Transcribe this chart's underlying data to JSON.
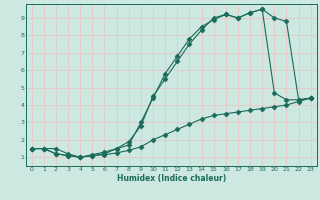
{
  "xlabel": "Humidex (Indice chaleur)",
  "background_color": "#cce8e0",
  "grid_color_major": "#e8c8c8",
  "line_color": "#1a6b5a",
  "xlim": [
    -0.5,
    23.5
  ],
  "ylim": [
    0.5,
    9.8
  ],
  "xticks": [
    0,
    1,
    2,
    3,
    4,
    5,
    6,
    7,
    8,
    9,
    10,
    11,
    12,
    13,
    14,
    15,
    16,
    17,
    18,
    19,
    20,
    21,
    22,
    23
  ],
  "yticks": [
    1,
    2,
    3,
    4,
    5,
    6,
    7,
    8,
    9
  ],
  "line1_x": [
    0,
    1,
    2,
    3,
    4,
    5,
    6,
    7,
    8,
    9,
    10,
    11,
    12,
    13,
    14,
    15,
    16,
    17,
    18,
    19,
    20,
    21,
    22,
    23
  ],
  "line1_y": [
    1.5,
    1.5,
    1.5,
    1.2,
    1.0,
    1.1,
    1.15,
    1.25,
    1.4,
    1.6,
    2.0,
    2.3,
    2.6,
    2.9,
    3.2,
    3.4,
    3.5,
    3.6,
    3.7,
    3.8,
    3.9,
    4.0,
    4.2,
    4.4
  ],
  "line2_x": [
    0,
    1,
    2,
    3,
    4,
    5,
    6,
    7,
    8,
    9,
    10,
    11,
    12,
    13,
    14,
    15,
    16,
    17,
    18,
    19,
    20,
    21,
    22,
    23
  ],
  "line2_y": [
    1.5,
    1.5,
    1.2,
    1.1,
    1.0,
    1.1,
    1.2,
    1.5,
    1.9,
    2.8,
    4.5,
    5.5,
    6.5,
    7.5,
    8.3,
    9.0,
    9.2,
    9.0,
    9.3,
    9.5,
    4.7,
    4.3,
    4.3,
    4.4
  ],
  "line3_x": [
    0,
    1,
    2,
    3,
    4,
    5,
    6,
    7,
    8,
    9,
    10,
    11,
    12,
    13,
    14,
    15,
    16,
    17,
    18,
    19,
    20,
    21,
    22,
    23
  ],
  "line3_y": [
    1.5,
    1.5,
    1.2,
    1.1,
    1.0,
    1.15,
    1.3,
    1.5,
    1.7,
    3.0,
    4.4,
    5.8,
    6.8,
    7.8,
    8.5,
    8.9,
    9.2,
    9.0,
    9.3,
    9.5,
    9.0,
    8.8,
    4.3,
    4.4
  ]
}
